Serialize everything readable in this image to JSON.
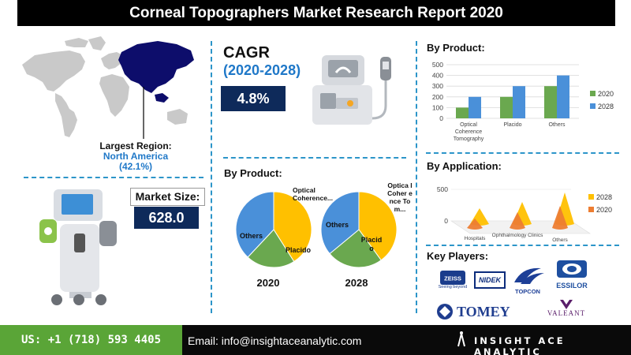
{
  "title": "Corneal Topographers Market Research Report 2020",
  "region": {
    "label": "Largest Region:",
    "name": "North America",
    "share": "(42.1%)"
  },
  "cagr": {
    "label": "CAGR",
    "period": "(2020-2028)",
    "value": "4.8%"
  },
  "market_size": {
    "label": "Market Size:",
    "value": "628.0"
  },
  "colors": {
    "blue": "#4a90d9",
    "green": "#6aa84f",
    "yellow": "#ffc000",
    "orange": "#ed7d31",
    "navy": "#0e2a5a",
    "accent_blue": "#1f78c8"
  },
  "chart_data": [
    {
      "type": "bar",
      "title": "By Product:",
      "categories": [
        "Optical Coherence Tomography",
        "Placido",
        "Others"
      ],
      "category_lines": [
        [
          "Optical",
          "Coherence",
          "Tomography"
        ],
        [
          "Placido"
        ],
        [
          "Others"
        ]
      ],
      "series": [
        {
          "name": "2020",
          "values": [
            100,
            200,
            300
          ],
          "color": "#6aa84f"
        },
        {
          "name": "2028",
          "values": [
            200,
            300,
            400
          ],
          "color": "#4a90d9"
        }
      ],
      "ylim": [
        0,
        500
      ],
      "yticks": [
        "0",
        "100",
        "200",
        "300",
        "400",
        "500"
      ],
      "legend": "right"
    },
    {
      "type": "pie",
      "title": "By Product:",
      "caption": "2020",
      "slices": [
        {
          "label": "Others",
          "value": 41,
          "color": "#ffc000"
        },
        {
          "label": "Optical Coherence...",
          "value": 21,
          "color": "#6aa84f"
        },
        {
          "label": "Placido",
          "value": 38,
          "color": "#4a90d9"
        }
      ]
    },
    {
      "type": "pie",
      "caption": "2028",
      "slices": [
        {
          "label": "Others",
          "value": 40,
          "color": "#ffc000"
        },
        {
          "label": "Optica l Coher ence Tom...",
          "value": 24,
          "color": "#6aa84f"
        },
        {
          "label": "Placid o",
          "value": 36,
          "color": "#4a90d9"
        }
      ]
    },
    {
      "type": "bar",
      "subtype": "3d-cone",
      "title": "By Application:",
      "categories": [
        "Hospitals",
        "Ophthalmology Clinics",
        "Others"
      ],
      "series": [
        {
          "name": "2020",
          "values": [
            150,
            250,
            350
          ],
          "color": "#ed7d31"
        },
        {
          "name": "2028",
          "values": [
            250,
            350,
            500
          ],
          "color": "#ffc000"
        }
      ],
      "ylim": [
        0,
        500
      ],
      "yticks": [
        "0",
        "500"
      ],
      "legend": "right"
    }
  ],
  "key_players": {
    "label": "Key Players:",
    "logos": [
      "ZEISS",
      "Seeing beyond",
      "NIDEK",
      "TOPCON",
      "ESSILOR",
      "TOMEY",
      "VALEANT"
    ]
  },
  "footer": {
    "phone": "US: +1 (718) 593 4405",
    "email": "Email: info@insightaceanalytic.com",
    "brand": "INSIGHT ACE ANALYTIC"
  }
}
